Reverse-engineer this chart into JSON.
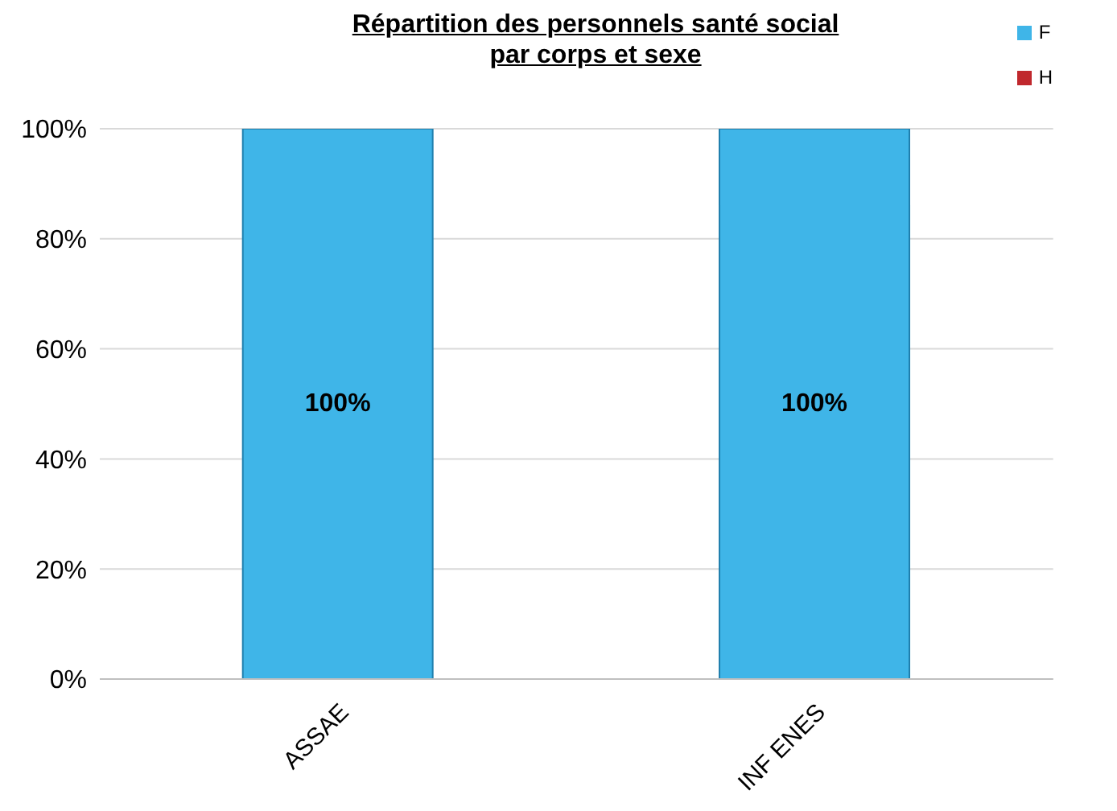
{
  "chart_data": {
    "type": "bar",
    "title": "Répartition des personnels santé social\npar corps et sexe",
    "categories": [
      "ASSAE",
      "INF ENES"
    ],
    "stacked": true,
    "series": [
      {
        "name": "F",
        "color": "#3fb5e8",
        "values": [
          100,
          100
        ],
        "value_labels": [
          "100%",
          "100%"
        ]
      },
      {
        "name": "H",
        "color": "#c0282d",
        "values": [
          0,
          0
        ],
        "value_labels": [
          null,
          null
        ]
      }
    ],
    "ylim": [
      0,
      100
    ],
    "yticks": [
      {
        "value": 0,
        "label": "0%"
      },
      {
        "value": 20,
        "label": "20%"
      },
      {
        "value": 40,
        "label": "40%"
      },
      {
        "value": 60,
        "label": "60%"
      },
      {
        "value": 80,
        "label": "80%"
      },
      {
        "value": 100,
        "label": "100%"
      }
    ],
    "grid": "y",
    "legend": "top right"
  }
}
